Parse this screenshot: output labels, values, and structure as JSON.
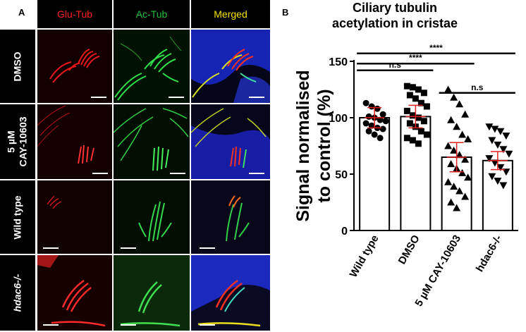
{
  "panelA": {
    "letter": "A",
    "columns": [
      {
        "label": "Glu-Tub",
        "color": "#ff2020"
      },
      {
        "label": "Ac-Tub",
        "color": "#22c040"
      },
      {
        "label": "Merged",
        "color": "#f5e400"
      }
    ],
    "rows": [
      {
        "line1": "DMSO",
        "line2": "",
        "italic": false
      },
      {
        "line1": "5 µM",
        "line2": "CAY-10603",
        "italic": false
      },
      {
        "line1": "Wild type",
        "line2": "",
        "italic": false
      },
      {
        "line1": "hdac6-/-",
        "line2": "",
        "italic": true
      }
    ]
  },
  "panelB": {
    "letter": "B"
  },
  "chart_data": {
    "type": "bar",
    "title": "Ciliary tubulin acetylation in cristae",
    "title_lines": [
      "Ciliary tubulin",
      "acetylation in cristae"
    ],
    "ylabel_lines": [
      "Signal normalised",
      "to control (%)"
    ],
    "xlabel": "",
    "ylim": [
      0,
      150
    ],
    "yticks": [
      "0",
      "50",
      "100",
      "150"
    ],
    "categories": [
      "Wild type",
      "DMSO",
      "5 µM CAY-10603",
      "hdac6-/-"
    ],
    "values": [
      100,
      101,
      65,
      62
    ],
    "errors": [
      9,
      10,
      13,
      8
    ],
    "markers": [
      "circle",
      "square",
      "triangle-up",
      "triangle-down"
    ],
    "points": [
      [
        113,
        110,
        108,
        103,
        101,
        100,
        98,
        97,
        95,
        93,
        91,
        90,
        88,
        85,
        82
      ],
      [
        128,
        127,
        125,
        122,
        120,
        117,
        113,
        110,
        106,
        102,
        100,
        97,
        95,
        92,
        88,
        85,
        82,
        80,
        77
      ],
      [
        125,
        118,
        112,
        103,
        98,
        92,
        85,
        81,
        75,
        71,
        67,
        63,
        59,
        55,
        51,
        47,
        43,
        39,
        35,
        30,
        25,
        20
      ],
      [
        92,
        90,
        88,
        84,
        80,
        76,
        72,
        68,
        64,
        60,
        56,
        52,
        48,
        44,
        40
      ]
    ],
    "significance": [
      {
        "from": 0,
        "to": 1,
        "label": "n.s",
        "y": 142
      },
      {
        "from": 0,
        "to": 3,
        "label": "****",
        "y": 157
      },
      {
        "from": 0,
        "to": 2,
        "label": "****",
        "y": 148
      },
      {
        "from": 2,
        "to": 3,
        "label": "n.s",
        "y": 122
      }
    ],
    "errorbar_color": "#e02020"
  }
}
